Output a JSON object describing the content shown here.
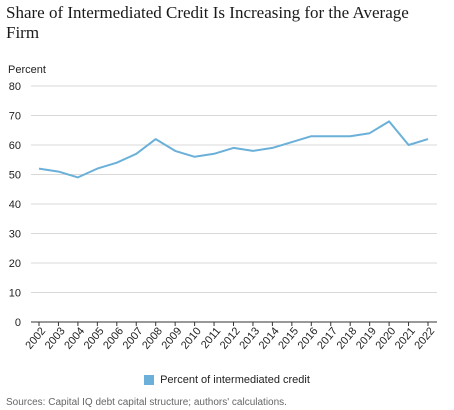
{
  "colors": {
    "series": "#6ab0d8",
    "grid": "#d9d9d9",
    "axis": "#333333"
  },
  "footer": {
    "source": "Sources: Capital IQ debt capital structure; authors' calculations."
  },
  "chart_data": {
    "type": "line",
    "title": "Share of Intermediated Credit Is Increasing for the Average Firm",
    "ylabel": "Percent",
    "xlabel": "",
    "ylim": [
      0,
      80
    ],
    "yticks": [
      0,
      10,
      20,
      30,
      40,
      50,
      60,
      70,
      80
    ],
    "grid": "horizontal",
    "legend_position": "bottom",
    "categories": [
      "2002",
      "2003",
      "2004",
      "2005",
      "2006",
      "2007",
      "2008",
      "2009",
      "2010",
      "2011",
      "2012",
      "2013",
      "2014",
      "2015",
      "2016",
      "2017",
      "2018",
      "2019",
      "2020",
      "2021",
      "2022"
    ],
    "series": [
      {
        "name": "Percent of intermediated credit",
        "values": [
          52,
          51,
          49,
          52,
          54,
          57,
          62,
          58,
          56,
          57,
          59,
          58,
          59,
          61,
          63,
          63,
          63,
          64,
          68,
          60,
          62
        ]
      }
    ]
  }
}
